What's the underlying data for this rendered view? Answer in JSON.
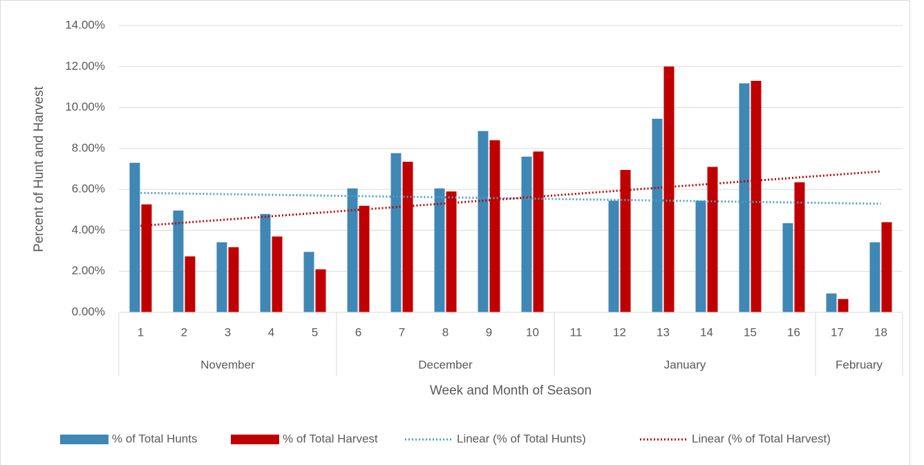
{
  "chart_data": {
    "type": "bar",
    "y_axis_label": "Percent of Hunt and Harvest",
    "x_axis_label": "Week and Month of Season",
    "categories": [
      "1",
      "2",
      "3",
      "4",
      "5",
      "6",
      "7",
      "8",
      "9",
      "10",
      "11",
      "12",
      "13",
      "14",
      "15",
      "16",
      "17",
      "18"
    ],
    "groups": [
      {
        "label": "November",
        "count": 5
      },
      {
        "label": "December",
        "count": 5
      },
      {
        "label": "January",
        "count": 6
      },
      {
        "label": "February",
        "count": 2
      }
    ],
    "series": [
      {
        "name": "% of Total Hunts",
        "color": "#3f87b5",
        "values": [
          7.3,
          4.97,
          3.42,
          4.8,
          2.95,
          6.05,
          7.77,
          6.05,
          8.85,
          7.6,
          null,
          5.45,
          9.45,
          5.45,
          11.18,
          4.35,
          0.92,
          3.42
        ]
      },
      {
        "name": "% of Total Harvest",
        "color": "#c00000",
        "values": [
          5.27,
          2.73,
          3.18,
          3.7,
          2.1,
          5.2,
          7.35,
          5.9,
          8.4,
          7.85,
          null,
          6.95,
          12.0,
          7.1,
          11.3,
          6.35,
          0.65,
          4.4
        ]
      }
    ],
    "trendlines": [
      {
        "name": "Linear (% of Total Hunts)",
        "color": "#4aa0c8",
        "start": 5.83,
        "end": 5.3
      },
      {
        "name": "Linear (% of Total Harvest)",
        "color": "#c00000",
        "start": 4.22,
        "end": 6.88
      }
    ],
    "ylim": [
      0,
      14
    ],
    "yticks": [
      {
        "value": 0,
        "label": "0.00%"
      },
      {
        "value": 2,
        "label": "2.00%"
      },
      {
        "value": 4,
        "label": "4.00%"
      },
      {
        "value": 6,
        "label": "6.00%"
      },
      {
        "value": 8,
        "label": "8.00%"
      },
      {
        "value": 10,
        "label": "10.00%"
      },
      {
        "value": 12,
        "label": "12.00%"
      },
      {
        "value": 14,
        "label": "14.00%"
      }
    ],
    "grid": true,
    "legend": "bottom"
  }
}
